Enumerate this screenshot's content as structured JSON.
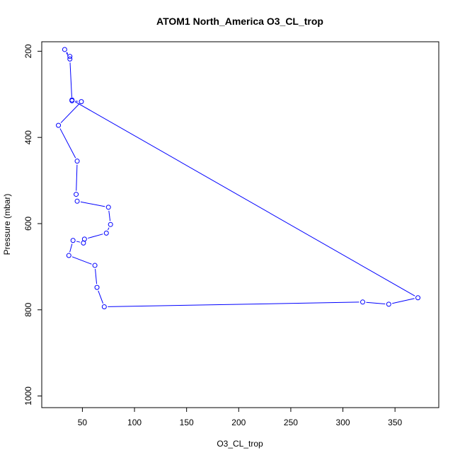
{
  "chart_data": {
    "type": "scatter",
    "title": "ATOM1 North_America O3_CL_trop",
    "xlabel": "O3_CL_trop",
    "ylabel": "Pressure (mbar)",
    "xlim": [
      11,
      392
    ],
    "ylim": [
      1027,
      178
    ],
    "y_reversed": true,
    "xticks": [
      50,
      100,
      150,
      200,
      250,
      300,
      350
    ],
    "yticks": [
      200,
      400,
      600,
      800,
      1000
    ],
    "grid": false,
    "point_style": "open-circle",
    "connected": true,
    "color": "#0000ff",
    "points": [
      {
        "x": 38,
        "y": 212
      },
      {
        "x": 33,
        "y": 196
      },
      {
        "x": 38,
        "y": 218
      },
      {
        "x": 40,
        "y": 315
      },
      {
        "x": 49,
        "y": 317
      },
      {
        "x": 27,
        "y": 372
      },
      {
        "x": 45,
        "y": 455
      },
      {
        "x": 44,
        "y": 532
      },
      {
        "x": 45,
        "y": 548
      },
      {
        "x": 75,
        "y": 562
      },
      {
        "x": 77,
        "y": 602
      },
      {
        "x": 73,
        "y": 622
      },
      {
        "x": 52,
        "y": 636
      },
      {
        "x": 51,
        "y": 645
      },
      {
        "x": 41,
        "y": 639
      },
      {
        "x": 37,
        "y": 674
      },
      {
        "x": 62,
        "y": 697
      },
      {
        "x": 64,
        "y": 748
      },
      {
        "x": 71,
        "y": 793
      },
      {
        "x": 319,
        "y": 782
      },
      {
        "x": 344,
        "y": 787
      },
      {
        "x": 372,
        "y": 772
      },
      {
        "x": 40,
        "y": 313
      }
    ]
  }
}
